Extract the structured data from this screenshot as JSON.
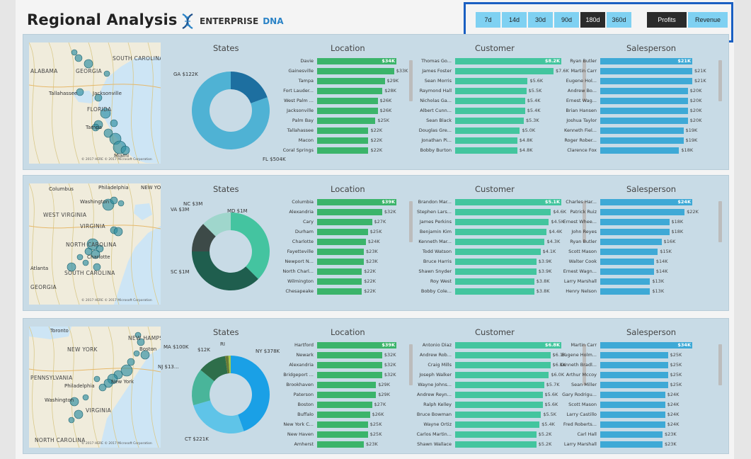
{
  "header": {
    "title": "Regional Analysis",
    "brand_primary": "ENTERPRISE",
    "brand_secondary": "DNA",
    "logo_icon": "dna-helix-icon"
  },
  "period_slicer": {
    "options": [
      "7d",
      "14d",
      "30d",
      "90d",
      "180d",
      "360d"
    ],
    "selected": "180d"
  },
  "metric_slicer": {
    "options": [
      "Profits",
      "Revenue"
    ],
    "selected": "Profits"
  },
  "colors": {
    "slicer_bg": "#7fd1f2",
    "slicer_selected": "#2b2b2b",
    "highlight_border": "#1a5fc2",
    "panel_bg": "#c8dbe6",
    "location_bar": "#3bb46a",
    "customer_bar": "#43c59e",
    "salesperson_bar": "#3ea9d6",
    "map_bubble": "#2d8ea0"
  },
  "section_titles": {
    "states": "States",
    "location": "Location",
    "customer": "Customer",
    "salesperson": "Salesperson"
  },
  "panels": [
    {
      "map": {
        "labels": [
          "SOUTH CAROLINA",
          "ALABAMA",
          "GEORGIA",
          "Tallahassee",
          "Jacksonville",
          "FLORIDA",
          "Tampa",
          "Miami"
        ],
        "footer": "© 2017 HERE  © 2017 Microsoft Corporation"
      },
      "states": {
        "slices": [
          {
            "label": "GA $122K",
            "value": 122,
            "color": "#1d6fa0"
          },
          {
            "label": "FL $504K",
            "value": 504,
            "color": "#4fb2d4"
          }
        ]
      },
      "location": [
        {
          "name": "Davie",
          "value": "$34K",
          "v": 34
        },
        {
          "name": "Gainesville",
          "value": "$33K",
          "v": 33
        },
        {
          "name": "Tampa",
          "value": "$29K",
          "v": 29
        },
        {
          "name": "Fort Lauder...",
          "value": "$28K",
          "v": 28
        },
        {
          "name": "West Palm ...",
          "value": "$26K",
          "v": 26
        },
        {
          "name": "Jacksonville",
          "value": "$26K",
          "v": 26
        },
        {
          "name": "Palm Bay",
          "value": "$25K",
          "v": 25
        },
        {
          "name": "Tallahassee",
          "value": "$22K",
          "v": 22
        },
        {
          "name": "Macon",
          "value": "$22K",
          "v": 22
        },
        {
          "name": "Coral Springs",
          "value": "$22K",
          "v": 22
        }
      ],
      "customer": [
        {
          "name": "Thomas Go...",
          "value": "$8.2K",
          "v": 8.2
        },
        {
          "name": "James Foster",
          "value": "$7.6K",
          "v": 7.6
        },
        {
          "name": "Sean Morris",
          "value": "$5.6K",
          "v": 5.6
        },
        {
          "name": "Raymond Hall",
          "value": "$5.5K",
          "v": 5.5
        },
        {
          "name": "Nicholas Ga...",
          "value": "$5.4K",
          "v": 5.4
        },
        {
          "name": "Albert Cunn...",
          "value": "$5.4K",
          "v": 5.4
        },
        {
          "name": "Sean Black",
          "value": "$5.3K",
          "v": 5.3
        },
        {
          "name": "Douglas Gre...",
          "value": "$5.0K",
          "v": 5.0
        },
        {
          "name": "Jonathan Pi...",
          "value": "$4.8K",
          "v": 4.8
        },
        {
          "name": "Bobby Burton",
          "value": "$4.8K",
          "v": 4.8
        }
      ],
      "salesperson": [
        {
          "name": "Ryan Butler",
          "value": "$21K",
          "v": 21
        },
        {
          "name": "Martin Carr",
          "value": "$21K",
          "v": 21
        },
        {
          "name": "Eugene Hol...",
          "value": "$21K",
          "v": 21
        },
        {
          "name": "Andrew Bo...",
          "value": "$20K",
          "v": 20
        },
        {
          "name": "Ernest Wag...",
          "value": "$20K",
          "v": 20
        },
        {
          "name": "Brian Hansen",
          "value": "$20K",
          "v": 20
        },
        {
          "name": "Joshua Taylor",
          "value": "$20K",
          "v": 20
        },
        {
          "name": "Kenneth Fiel...",
          "value": "$19K",
          "v": 19
        },
        {
          "name": "Roger Rober...",
          "value": "$19K",
          "v": 19
        },
        {
          "name": "Clarence Fox",
          "value": "$18K",
          "v": 18
        }
      ]
    },
    {
      "map": {
        "labels": [
          "Columbus",
          "Philadelphia",
          "NEW YOR",
          "Washington",
          "WEST VIRGINIA",
          "VIRGINIA",
          "NORTH CAROLINA",
          "Charlotte",
          "Atlanta",
          "SOUTH CAROLINA",
          "GEORGIA"
        ],
        "footer": "© 2017 HERE  © 2017 Microsoft Corporation"
      },
      "states": {
        "slices": [
          {
            "label": "NC $3M",
            "value": 3,
            "color": "#44c4a0"
          },
          {
            "label": "VA $3M",
            "value": 3,
            "color": "#1f5e4e"
          },
          {
            "label": "SC $1M",
            "value": 1,
            "color": "#3d4a48"
          },
          {
            "label": "MD $1M",
            "value": 1,
            "color": "#9fd6cc"
          }
        ]
      },
      "location": [
        {
          "name": "Columbia",
          "value": "$39K",
          "v": 39
        },
        {
          "name": "Alexandria",
          "value": "$32K",
          "v": 32
        },
        {
          "name": "Cary",
          "value": "$27K",
          "v": 27
        },
        {
          "name": "Durham",
          "value": "$25K",
          "v": 25
        },
        {
          "name": "Charlotte",
          "value": "$24K",
          "v": 24
        },
        {
          "name": "Fayetteville",
          "value": "$23K",
          "v": 23
        },
        {
          "name": "Newport N...",
          "value": "$23K",
          "v": 23
        },
        {
          "name": "North Charl...",
          "value": "$22K",
          "v": 22
        },
        {
          "name": "Wilmington",
          "value": "$22K",
          "v": 22
        },
        {
          "name": "Chesapeake",
          "value": "$22K",
          "v": 22
        }
      ],
      "customer": [
        {
          "name": "Brandon Mar...",
          "value": "$5.1K",
          "v": 5.1
        },
        {
          "name": "Stephen Lars...",
          "value": "$4.6K",
          "v": 4.6
        },
        {
          "name": "James Perkins",
          "value": "$4.5K",
          "v": 4.5
        },
        {
          "name": "Benjamin Kim",
          "value": "$4.4K",
          "v": 4.4
        },
        {
          "name": "Kenneth Mar...",
          "value": "$4.3K",
          "v": 4.3
        },
        {
          "name": "Todd Watson",
          "value": "$4.1K",
          "v": 4.1
        },
        {
          "name": "Bruce Harris",
          "value": "$3.9K",
          "v": 3.9
        },
        {
          "name": "Shawn Snyder",
          "value": "$3.9K",
          "v": 3.9
        },
        {
          "name": "Roy West",
          "value": "$3.8K",
          "v": 3.8
        },
        {
          "name": "Bobby Cole...",
          "value": "$3.8K",
          "v": 3.8
        }
      ],
      "salesperson": [
        {
          "name": "Charles Har...",
          "value": "$24K",
          "v": 24
        },
        {
          "name": "Patrick Ruiz",
          "value": "$22K",
          "v": 22
        },
        {
          "name": "Ernest Whee...",
          "value": "$18K",
          "v": 18
        },
        {
          "name": "John Reyes",
          "value": "$18K",
          "v": 18
        },
        {
          "name": "Ryan Butler",
          "value": "$16K",
          "v": 16
        },
        {
          "name": "Scott Mason",
          "value": "$15K",
          "v": 15
        },
        {
          "name": "Walter Cook",
          "value": "$14K",
          "v": 14
        },
        {
          "name": "Ernest Wagn...",
          "value": "$14K",
          "v": 14
        },
        {
          "name": "Larry Marshall",
          "value": "$13K",
          "v": 13
        },
        {
          "name": "Henry Nelson",
          "value": "$13K",
          "v": 13
        }
      ]
    },
    {
      "map": {
        "labels": [
          "Toronto",
          "NEW HAMPSHIRE",
          "NEW YORK",
          "Boston",
          "PENNSYLVANIA",
          "Philadelphia",
          "New York",
          "Washington",
          "VIRGINIA",
          "NORTH CAROLINA"
        ],
        "footer": "© 2017 HERE  © 2017 Microsoft Corporation"
      },
      "states": {
        "slices": [
          {
            "label": "NY $378K",
            "value": 378,
            "color": "#1aa0e6"
          },
          {
            "label": "CT $221K",
            "value": 221,
            "color": "#5fc4e8"
          },
          {
            "label": "NJ $13...",
            "value": 130,
            "color": "#49b59a"
          },
          {
            "label": "MA $100K",
            "value": 100,
            "color": "#2e6e4a"
          },
          {
            "label": "$12K",
            "value": 12,
            "color": "#6a7a36"
          },
          {
            "label": "RI",
            "value": 8,
            "color": "#a6c94a"
          }
        ]
      },
      "location": [
        {
          "name": "Hartford",
          "value": "$39K",
          "v": 39
        },
        {
          "name": "Newark",
          "value": "$32K",
          "v": 32
        },
        {
          "name": "Alexandria",
          "value": "$32K",
          "v": 32
        },
        {
          "name": "Bridgeport ...",
          "value": "$32K",
          "v": 32
        },
        {
          "name": "Brookhaven",
          "value": "$29K",
          "v": 29
        },
        {
          "name": "Paterson",
          "value": "$29K",
          "v": 29
        },
        {
          "name": "Boston",
          "value": "$27K",
          "v": 27
        },
        {
          "name": "Buffalo",
          "value": "$26K",
          "v": 26
        },
        {
          "name": "New York C...",
          "value": "$25K",
          "v": 25
        },
        {
          "name": "New Haven",
          "value": "$25K",
          "v": 25
        },
        {
          "name": "Amherst",
          "value": "$23K",
          "v": 23
        }
      ],
      "customer": [
        {
          "name": "Antonio Diaz",
          "value": "$6.8K",
          "v": 6.8
        },
        {
          "name": "Andrew Rob...",
          "value": "$6.1K",
          "v": 6.1
        },
        {
          "name": "Craig Mills",
          "value": "$6.1K",
          "v": 6.1
        },
        {
          "name": "Joseph Walker",
          "value": "$6.0K",
          "v": 6.0
        },
        {
          "name": "Wayne Johns...",
          "value": "$5.7K",
          "v": 5.7
        },
        {
          "name": "Andrew Reyn...",
          "value": "$5.6K",
          "v": 5.6
        },
        {
          "name": "Ralph Kelley",
          "value": "$5.6K",
          "v": 5.6
        },
        {
          "name": "Bruce Bowman",
          "value": "$5.5K",
          "v": 5.5
        },
        {
          "name": "Wayne Ortiz",
          "value": "$5.4K",
          "v": 5.4
        },
        {
          "name": "Carlos Martin...",
          "value": "$5.2K",
          "v": 5.2
        },
        {
          "name": "Shawn Wallace",
          "value": "$5.2K",
          "v": 5.2
        }
      ],
      "salesperson": [
        {
          "name": "Martin Carr",
          "value": "$34K",
          "v": 34
        },
        {
          "name": "Eugene Holm...",
          "value": "$25K",
          "v": 25
        },
        {
          "name": "Kenneth Bradl...",
          "value": "$25K",
          "v": 25
        },
        {
          "name": "Arthur Mccoy",
          "value": "$25K",
          "v": 25
        },
        {
          "name": "Sean Miller",
          "value": "$25K",
          "v": 25
        },
        {
          "name": "Gary Rodrigu...",
          "value": "$24K",
          "v": 24
        },
        {
          "name": "Scott Mason",
          "value": "$24K",
          "v": 24
        },
        {
          "name": "Larry Castillo",
          "value": "$24K",
          "v": 24
        },
        {
          "name": "Fred Roberts...",
          "value": "$24K",
          "v": 24
        },
        {
          "name": "Carl Hall",
          "value": "$23K",
          "v": 23
        },
        {
          "name": "Larry Marshall",
          "value": "$23K",
          "v": 23
        }
      ]
    }
  ]
}
